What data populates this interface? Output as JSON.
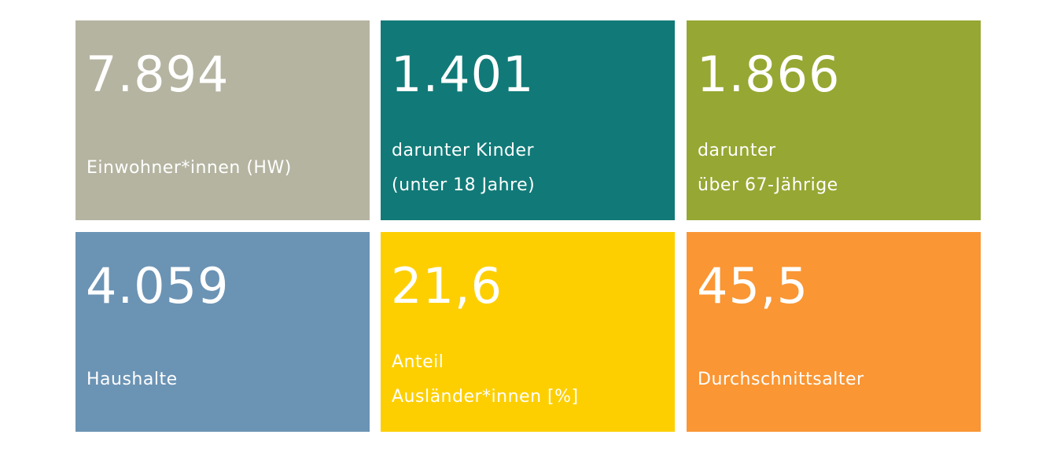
{
  "tiles": [
    {
      "value": "7.894",
      "label": [
        "Einwohner*innen (HW)"
      ],
      "color": "#b5b4a1"
    },
    {
      "value": "1.401",
      "label": [
        "darunter Kinder",
        "(unter 18 Jahre)"
      ],
      "color": "#117a78"
    },
    {
      "value": "1.866",
      "label": [
        "darunter",
        "über 67-Jährige"
      ],
      "color": "#97a733"
    },
    {
      "value": "4.059",
      "label": [
        "Haushalte"
      ],
      "color": "#6b93b4"
    },
    {
      "value": "21,6",
      "label": [
        "Anteil",
        "Ausländer*innen [%]"
      ],
      "color": "#fdcf00"
    },
    {
      "value": "45,5",
      "label": [
        "Durchschnittsalter"
      ],
      "color": "#fa9633"
    }
  ]
}
